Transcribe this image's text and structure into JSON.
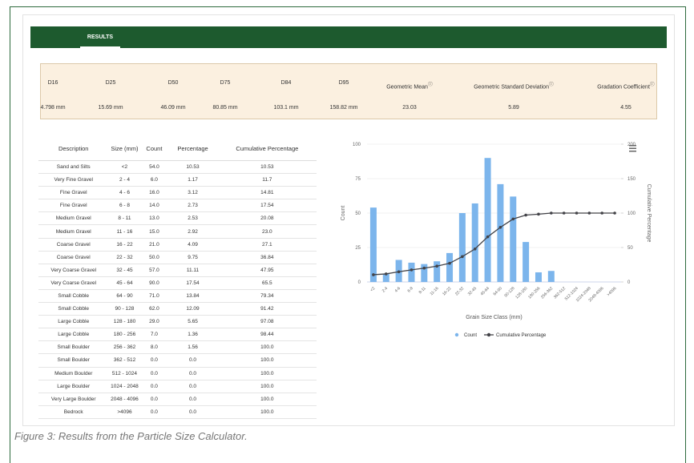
{
  "header": {
    "tab": "RESULTS"
  },
  "summary": {
    "labels": [
      "D16",
      "D25",
      "D50",
      "D75",
      "D84",
      "D95",
      "Geometric Mean",
      "Geometric Standard Deviation",
      "Gradation Coefficient"
    ],
    "values": [
      "4.798 mm",
      "15.69 mm",
      "46.09 mm",
      "80.85 mm",
      "103.1 mm",
      "158.82 mm",
      "23.03",
      "5.89",
      "4.55"
    ]
  },
  "table": {
    "columns": [
      "Description",
      "Size (mm)",
      "Count",
      "Percentage",
      "Cumulative Percentage"
    ],
    "rows": [
      [
        "Sand and Silts",
        "<2",
        "54.0",
        "10.53",
        "10.53"
      ],
      [
        "Very Fine Gravel",
        "2 - 4",
        "6.0",
        "1.17",
        "11.7"
      ],
      [
        "Fine Gravel",
        "4 - 6",
        "16.0",
        "3.12",
        "14.81"
      ],
      [
        "Fine Gravel",
        "6 - 8",
        "14.0",
        "2.73",
        "17.54"
      ],
      [
        "Medium Gravel",
        "8 - 11",
        "13.0",
        "2.53",
        "20.08"
      ],
      [
        "Medium Gravel",
        "11 - 16",
        "15.0",
        "2.92",
        "23.0"
      ],
      [
        "Coarse Gravel",
        "16 - 22",
        "21.0",
        "4.09",
        "27.1"
      ],
      [
        "Coarse Gravel",
        "22 - 32",
        "50.0",
        "9.75",
        "36.84"
      ],
      [
        "Very Coarse Gravel",
        "32 - 45",
        "57.0",
        "11.11",
        "47.95"
      ],
      [
        "Very Coarse Gravel",
        "45 - 64",
        "90.0",
        "17.54",
        "65.5"
      ],
      [
        "Small Cobble",
        "64 - 90",
        "71.0",
        "13.84",
        "79.34"
      ],
      [
        "Small Cobble",
        "90 - 128",
        "62.0",
        "12.09",
        "91.42"
      ],
      [
        "Large Cobble",
        "128 - 180",
        "29.0",
        "5.65",
        "97.08"
      ],
      [
        "Large Cobble",
        "180 - 256",
        "7.0",
        "1.36",
        "98.44"
      ],
      [
        "Small Boulder",
        "256 - 362",
        "8.0",
        "1.56",
        "100.0"
      ],
      [
        "Small Boulder",
        "362 - 512",
        "0.0",
        "0.0",
        "100.0"
      ],
      [
        "Medium Boulder",
        "512 - 1024",
        "0.0",
        "0.0",
        "100.0"
      ],
      [
        "Large Boulder",
        "1024 - 2048",
        "0.0",
        "0.0",
        "100.0"
      ],
      [
        "Very Large Boulder",
        "2048 - 4096",
        "0.0",
        "0.0",
        "100.0"
      ],
      [
        "Bedrock",
        ">4096",
        "0.0",
        "0.0",
        "100.0"
      ]
    ]
  },
  "chart_data": {
    "type": "bar",
    "categories": [
      "<2",
      "2-4",
      "4-6",
      "6-8",
      "8-11",
      "11-16",
      "16-22",
      "22-32",
      "32-45",
      "45-64",
      "64-90",
      "90-128",
      "128-180",
      "180-256",
      "256-362",
      "362-512",
      "512-1024",
      "1024-2048",
      "2048-4096",
      ">4096"
    ],
    "series": [
      {
        "name": "Count",
        "color": "#7cb5ec",
        "values": [
          54,
          6,
          16,
          14,
          13,
          15,
          21,
          50,
          57,
          90,
          71,
          62,
          29,
          7,
          8,
          0,
          0,
          0,
          0,
          0
        ]
      },
      {
        "name": "Cumulative Percentage",
        "color": "#434348",
        "type": "line",
        "axis": "y2",
        "values": [
          10.53,
          11.7,
          14.81,
          17.54,
          20.08,
          23.0,
          27.1,
          36.84,
          47.95,
          65.5,
          79.34,
          91.42,
          97.08,
          98.44,
          100,
          100,
          100,
          100,
          100,
          100
        ]
      }
    ],
    "ylim": [
      0,
      100
    ],
    "yticks": [
      0,
      25,
      50,
      75,
      100
    ],
    "y2lim": [
      0,
      200
    ],
    "y2ticks": [
      0,
      50,
      100,
      150,
      200
    ],
    "grid": true,
    "xlabel": "Grain Size Class (mm)",
    "ylabel": "Count",
    "y2label": "Cumulative Percentage"
  },
  "caption": "Figure 3: Results from the Particle Size Calculator."
}
